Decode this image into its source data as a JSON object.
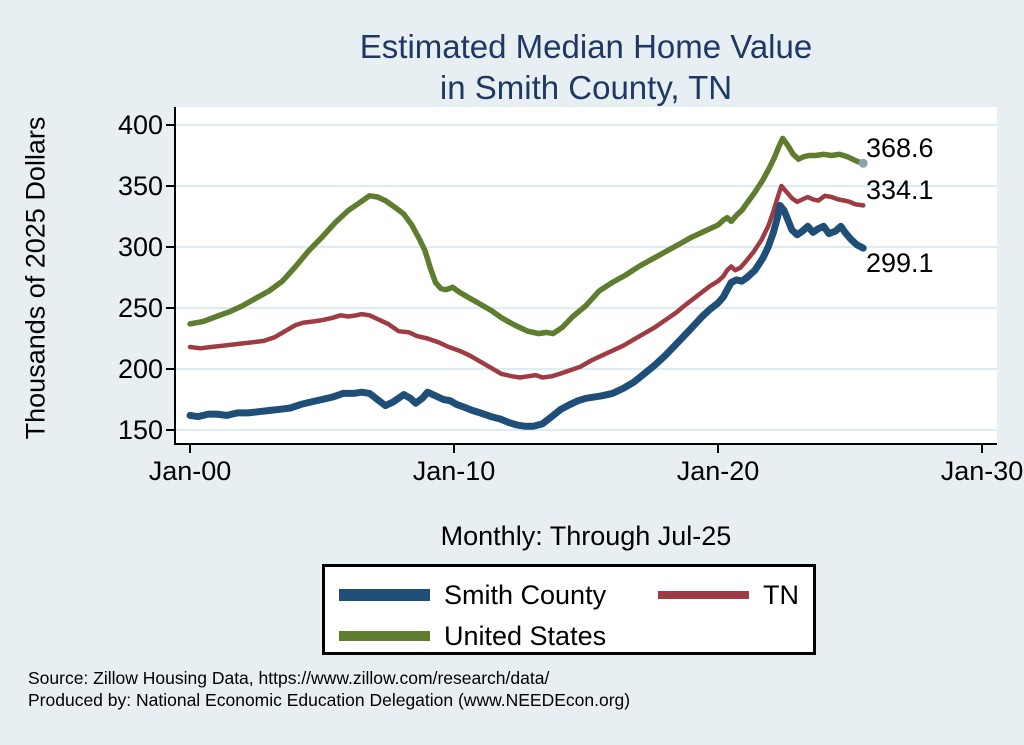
{
  "title": {
    "line1": "Estimated Median Home Value",
    "line2": "in Smith County, TN"
  },
  "y_axis": {
    "label": "Thousands of 2025 Dollars",
    "ticks": [
      "400",
      "350",
      "300",
      "250",
      "200",
      "150"
    ],
    "tick_values": [
      400,
      350,
      300,
      250,
      200,
      150
    ]
  },
  "x_axis": {
    "ticks": [
      "Jan-00",
      "Jan-10",
      "Jan-20",
      "Jan-30"
    ],
    "tick_years": [
      0,
      10,
      20,
      30
    ],
    "subtitle": "Monthly: Through Jul-25"
  },
  "end_labels": {
    "united_states": "368.6",
    "tn": "334.1",
    "smith_county": "299.1"
  },
  "legend": {
    "items": [
      {
        "label": "Smith County",
        "color": "#1f4e79"
      },
      {
        "label": "TN",
        "color": "#9e3b43"
      },
      {
        "label": "United States",
        "color": "#5e7d2e"
      }
    ]
  },
  "source": {
    "line1": "Source: Zillow Housing Data, https://www.zillow.com/research/data/",
    "line2": "Produced by: National Economic Education Delegation (www.NEEDEcon.org)"
  },
  "colors": {
    "background": "#e8eff2",
    "plot_background": "#ffffff",
    "gridline": "#dfebf2",
    "axis": "#000000",
    "title_text": "#1f3864",
    "smith_county_line": "#1f4e79",
    "tn_line": "#9e3b43",
    "united_states_line": "#5e7d2e",
    "end_dot": "#87a5ab"
  },
  "chart_data": {
    "type": "line",
    "title": "Estimated Median Home Value in Smith County, TN",
    "subtitle": "Monthly: Through Jul-25",
    "ylabel": "Thousands of 2025 Dollars",
    "x_unit": "years since Jan-2000",
    "xlim": [
      -0.55,
      30.55
    ],
    "ylim": [
      139,
      415
    ],
    "y_ticks": [
      150,
      200,
      250,
      300,
      350,
      400
    ],
    "x_tick_labels": [
      "Jan-00",
      "Jan-10",
      "Jan-20",
      "Jan-30"
    ],
    "grid": true,
    "legend_position": "bottom",
    "last_values": {
      "Smith County": 299.1,
      "TN": 334.1,
      "United States": 368.6
    },
    "series": [
      {
        "name": "United States",
        "color": "#5e7d2e",
        "points": [
          [
            0,
            237
          ],
          [
            0.5,
            239
          ],
          [
            1,
            243
          ],
          [
            1.5,
            247
          ],
          [
            2,
            252
          ],
          [
            2.5,
            258
          ],
          [
            3,
            264
          ],
          [
            3.5,
            272
          ],
          [
            4,
            284
          ],
          [
            4.5,
            297
          ],
          [
            5,
            308
          ],
          [
            5.5,
            320
          ],
          [
            6,
            330
          ],
          [
            6.4,
            336
          ],
          [
            6.8,
            342
          ],
          [
            7.1,
            341
          ],
          [
            7.4,
            338
          ],
          [
            7.8,
            332
          ],
          [
            8.1,
            327
          ],
          [
            8.4,
            318
          ],
          [
            8.7,
            306
          ],
          [
            8.9,
            297
          ],
          [
            9.1,
            283
          ],
          [
            9.3,
            271
          ],
          [
            9.5,
            266
          ],
          [
            9.7,
            265
          ],
          [
            9.95,
            267
          ],
          [
            10.2,
            263
          ],
          [
            10.6,
            258
          ],
          [
            11,
            253
          ],
          [
            11.4,
            248
          ],
          [
            11.8,
            242
          ],
          [
            12.3,
            236
          ],
          [
            12.8,
            231
          ],
          [
            13.2,
            229
          ],
          [
            13.5,
            230
          ],
          [
            13.75,
            229
          ],
          [
            14.1,
            234
          ],
          [
            14.5,
            243
          ],
          [
            15,
            252
          ],
          [
            15.5,
            264
          ],
          [
            16,
            271
          ],
          [
            16.5,
            277
          ],
          [
            17,
            284
          ],
          [
            17.5,
            290
          ],
          [
            18,
            296
          ],
          [
            18.5,
            302
          ],
          [
            19,
            308
          ],
          [
            19.5,
            313
          ],
          [
            20,
            318
          ],
          [
            20.2,
            322
          ],
          [
            20.35,
            324
          ],
          [
            20.5,
            321
          ],
          [
            20.7,
            326
          ],
          [
            20.9,
            330
          ],
          [
            21.1,
            336
          ],
          [
            21.4,
            345
          ],
          [
            21.7,
            355
          ],
          [
            21.95,
            365
          ],
          [
            22.15,
            374
          ],
          [
            22.3,
            382
          ],
          [
            22.45,
            389
          ],
          [
            22.65,
            383
          ],
          [
            22.85,
            376
          ],
          [
            23.05,
            372
          ],
          [
            23.25,
            374
          ],
          [
            23.45,
            375
          ],
          [
            23.7,
            375
          ],
          [
            24,
            376
          ],
          [
            24.3,
            375
          ],
          [
            24.6,
            376
          ],
          [
            24.9,
            374
          ],
          [
            25.1,
            372
          ],
          [
            25.3,
            370
          ],
          [
            25.5,
            368.6
          ]
        ]
      },
      {
        "name": "TN",
        "color": "#9e3b43",
        "points": [
          [
            0,
            218
          ],
          [
            0.4,
            217
          ],
          [
            0.8,
            218
          ],
          [
            1.2,
            219
          ],
          [
            1.6,
            220
          ],
          [
            2,
            221
          ],
          [
            2.4,
            222
          ],
          [
            2.8,
            223
          ],
          [
            3.2,
            226
          ],
          [
            3.6,
            231
          ],
          [
            4,
            236
          ],
          [
            4.3,
            238
          ],
          [
            4.7,
            239
          ],
          [
            5,
            240
          ],
          [
            5.4,
            242
          ],
          [
            5.7,
            244
          ],
          [
            6,
            243
          ],
          [
            6.3,
            244
          ],
          [
            6.5,
            245
          ],
          [
            6.8,
            244
          ],
          [
            7.1,
            241
          ],
          [
            7.5,
            237
          ],
          [
            7.9,
            231
          ],
          [
            8.3,
            230
          ],
          [
            8.6,
            227
          ],
          [
            9,
            225
          ],
          [
            9.4,
            222
          ],
          [
            9.8,
            218
          ],
          [
            10.2,
            215
          ],
          [
            10.6,
            211
          ],
          [
            11,
            206
          ],
          [
            11.4,
            201
          ],
          [
            11.8,
            196
          ],
          [
            12.2,
            194
          ],
          [
            12.5,
            193
          ],
          [
            12.8,
            194
          ],
          [
            13.1,
            195
          ],
          [
            13.35,
            193
          ],
          [
            13.7,
            194
          ],
          [
            14,
            196
          ],
          [
            14.4,
            199
          ],
          [
            14.8,
            202
          ],
          [
            15.2,
            207
          ],
          [
            15.6,
            211
          ],
          [
            16,
            215
          ],
          [
            16.4,
            219
          ],
          [
            16.8,
            224
          ],
          [
            17.2,
            229
          ],
          [
            17.6,
            234
          ],
          [
            18,
            240
          ],
          [
            18.4,
            246
          ],
          [
            18.8,
            253
          ],
          [
            19.1,
            258
          ],
          [
            19.4,
            263
          ],
          [
            19.7,
            268
          ],
          [
            20,
            272
          ],
          [
            20.2,
            276
          ],
          [
            20.35,
            281
          ],
          [
            20.5,
            284
          ],
          [
            20.65,
            281
          ],
          [
            20.85,
            283
          ],
          [
            21.05,
            288
          ],
          [
            21.35,
            296
          ],
          [
            21.65,
            306
          ],
          [
            21.9,
            317
          ],
          [
            22.1,
            329
          ],
          [
            22.25,
            340
          ],
          [
            22.4,
            350
          ],
          [
            22.6,
            345
          ],
          [
            22.8,
            340
          ],
          [
            23,
            337
          ],
          [
            23.2,
            339
          ],
          [
            23.4,
            341
          ],
          [
            23.6,
            339
          ],
          [
            23.8,
            338
          ],
          [
            24.05,
            342
          ],
          [
            24.3,
            341
          ],
          [
            24.55,
            339
          ],
          [
            24.8,
            338
          ],
          [
            25,
            337
          ],
          [
            25.2,
            335
          ],
          [
            25.5,
            334.1
          ]
        ]
      },
      {
        "name": "Smith County",
        "color": "#1f4e79",
        "points": [
          [
            0,
            162
          ],
          [
            0.3,
            161
          ],
          [
            0.7,
            163
          ],
          [
            1,
            163
          ],
          [
            1.4,
            162
          ],
          [
            1.8,
            164
          ],
          [
            2.2,
            164
          ],
          [
            2.6,
            165
          ],
          [
            3,
            166
          ],
          [
            3.4,
            167
          ],
          [
            3.8,
            168
          ],
          [
            4.2,
            171
          ],
          [
            4.6,
            173
          ],
          [
            5,
            175
          ],
          [
            5.4,
            177
          ],
          [
            5.8,
            180
          ],
          [
            6.2,
            180
          ],
          [
            6.5,
            181
          ],
          [
            6.8,
            180
          ],
          [
            7.1,
            175
          ],
          [
            7.4,
            170
          ],
          [
            7.7,
            173
          ],
          [
            8.1,
            179
          ],
          [
            8.35,
            176
          ],
          [
            8.55,
            172
          ],
          [
            8.8,
            176
          ],
          [
            9,
            181
          ],
          [
            9.3,
            178
          ],
          [
            9.6,
            175
          ],
          [
            9.85,
            174
          ],
          [
            10.1,
            171
          ],
          [
            10.35,
            169
          ],
          [
            10.7,
            166
          ],
          [
            11,
            164
          ],
          [
            11.4,
            161
          ],
          [
            11.75,
            159
          ],
          [
            12.1,
            156
          ],
          [
            12.4,
            154
          ],
          [
            12.7,
            153
          ],
          [
            13,
            153
          ],
          [
            13.35,
            155
          ],
          [
            13.7,
            161
          ],
          [
            14.05,
            167
          ],
          [
            14.4,
            171
          ],
          [
            14.7,
            174
          ],
          [
            15,
            176
          ],
          [
            15.3,
            177
          ],
          [
            15.6,
            178
          ],
          [
            16,
            180
          ],
          [
            16.4,
            184
          ],
          [
            16.8,
            189
          ],
          [
            17.2,
            196
          ],
          [
            17.6,
            203
          ],
          [
            18,
            211
          ],
          [
            18.4,
            220
          ],
          [
            18.8,
            229
          ],
          [
            19.1,
            236
          ],
          [
            19.4,
            243
          ],
          [
            19.7,
            249
          ],
          [
            20,
            254
          ],
          [
            20.2,
            259
          ],
          [
            20.35,
            265
          ],
          [
            20.5,
            271
          ],
          [
            20.7,
            273
          ],
          [
            20.9,
            272
          ],
          [
            21.1,
            275
          ],
          [
            21.4,
            281
          ],
          [
            21.7,
            291
          ],
          [
            21.9,
            300
          ],
          [
            22.1,
            312
          ],
          [
            22.25,
            324
          ],
          [
            22.35,
            334
          ],
          [
            22.5,
            330
          ],
          [
            22.65,
            322
          ],
          [
            22.8,
            314
          ],
          [
            23,
            310
          ],
          [
            23.2,
            313
          ],
          [
            23.4,
            317
          ],
          [
            23.6,
            312
          ],
          [
            23.8,
            315
          ],
          [
            24,
            317
          ],
          [
            24.2,
            311
          ],
          [
            24.45,
            313
          ],
          [
            24.65,
            317
          ],
          [
            24.85,
            311
          ],
          [
            25.05,
            306
          ],
          [
            25.25,
            302
          ],
          [
            25.5,
            299.1
          ]
        ]
      }
    ]
  }
}
